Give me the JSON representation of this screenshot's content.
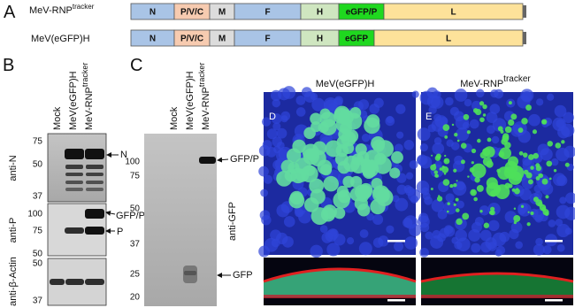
{
  "panel_a": {
    "label": "A",
    "constructs": [
      {
        "name": "MeV-RNP",
        "name_sup": "tracker",
        "genes": [
          "N",
          "P/V/C",
          "M",
          "F",
          "H",
          "eGFP/P",
          "L"
        ]
      },
      {
        "name": "MeV(eGFP)H",
        "genes": [
          "N",
          "P/V/C",
          "M",
          "F",
          "H",
          "eGFP",
          "L"
        ]
      }
    ]
  },
  "panel_b": {
    "label": "B",
    "lanes": [
      {
        "text": "Mock"
      },
      {
        "text": "MeV(eGFP)H"
      },
      {
        "text": "MeV-RNP",
        "sup": "tracker"
      }
    ],
    "blots": [
      {
        "antibody": "anti-N",
        "markers": [
          "75",
          "50",
          "37"
        ],
        "arrows": [
          "N"
        ]
      },
      {
        "antibody": "anti-P",
        "markers": [
          "100",
          "75",
          "50"
        ],
        "arrows": [
          "GFP/P",
          "P"
        ]
      },
      {
        "antibody": "anti-β-Actin",
        "markers": [
          "50",
          "37"
        ]
      }
    ]
  },
  "panel_c": {
    "label": "C",
    "lanes": [
      {
        "text": "Mock"
      },
      {
        "text": "MeV(eGFP)H"
      },
      {
        "text": "MeV-RNP",
        "sup": "tracker"
      }
    ],
    "antibody": "anti-GFP",
    "markers": [
      "100",
      "75",
      "50",
      "37",
      "25",
      "20"
    ],
    "arrows": [
      "GFP/P",
      "GFP"
    ]
  },
  "panel_d": {
    "label": "D",
    "title": "MeV(eGFP)H"
  },
  "panel_e": {
    "label": "E",
    "title": "MeV-RNP",
    "title_sup": "tracker"
  }
}
